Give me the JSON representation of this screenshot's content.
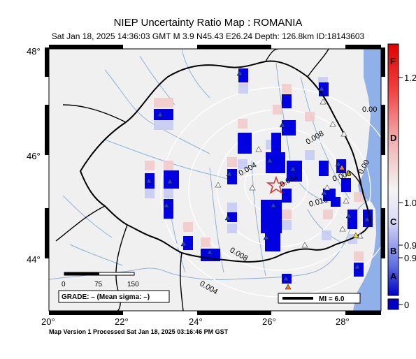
{
  "title": "NIEP Uncertainty Ratio Map : ROMANIA",
  "subtitle": "Sat Jan 18, 2025 14:36:03 GMT   M 3.9   N45.43 E26.24   Depth: 126.8km   ID:18143603",
  "footer": "Map Version 1 Processed Sat Jan 18, 2025 03:16:46 PM GST",
  "axes": {
    "lat_labels": [
      "48°",
      "46°",
      "44°"
    ],
    "lon_labels": [
      "20°",
      "22°",
      "24°",
      "26°",
      "28°"
    ]
  },
  "contours": [
    "0.004",
    "0.008",
    "0.012",
    "0.016",
    "0.008",
    "0.004",
    "0.00",
    "0.008",
    "0.00"
  ],
  "scalebar": {
    "ticks": [
      "0",
      "75",
      "150"
    ]
  },
  "grade_label": "GRADE: – (Mean sigma: –)",
  "legend_mi": "MI = 6.0",
  "colorbar": {
    "right_labels": [
      "1.2",
      "1.0",
      "0.9",
      "0.9",
      "0"
    ],
    "grade_letters": [
      "F",
      "D",
      "C",
      "B",
      "A"
    ]
  },
  "colors": {
    "land": "#f0f0f0",
    "sea": "#8fb0e8",
    "river": "#8fb2d6",
    "border": "#000000",
    "cell_strong": "#0000e0",
    "cell_light": "#f2c8c8",
    "epicenter": "#e03030"
  }
}
